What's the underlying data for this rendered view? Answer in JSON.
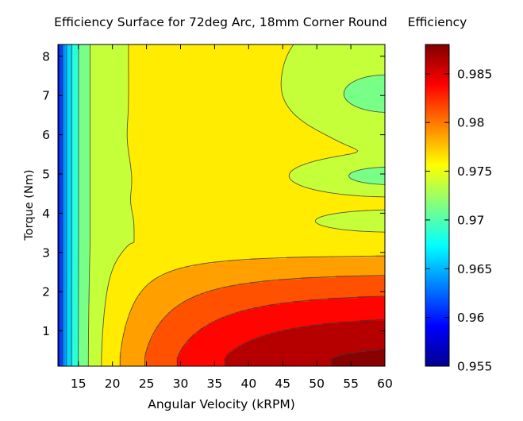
{
  "chart_data": {
    "type": "heatmap",
    "subtype": "filled-contour",
    "title": "Efficiency Surface for 72deg Arc, 18mm Corner Round",
    "xlabel": "Angular Velocity (kRPM)",
    "ylabel": "Torque (Nm)",
    "xlim": [
      12,
      60
    ],
    "ylim": [
      0.1,
      8.3
    ],
    "xticks": [
      15,
      20,
      25,
      30,
      35,
      40,
      45,
      50,
      55,
      60
    ],
    "yticks": [
      1,
      2,
      3,
      4,
      5,
      6,
      7,
      8
    ],
    "colorbar": {
      "title": "Efficiency",
      "range": [
        0.955,
        0.988
      ],
      "ticks": [
        "0.955",
        "0.96",
        "0.965",
        "0.97",
        "0.975",
        "0.98",
        "0.985"
      ],
      "colormap": [
        "#00008f",
        "#0000ff",
        "#0080ff",
        "#00ffff",
        "#80ff80",
        "#ffff00",
        "#ff8000",
        "#ff0000",
        "#800000"
      ]
    },
    "contour_levels": [
      0.9575,
      0.96,
      0.9625,
      0.965,
      0.9675,
      0.97,
      0.9725,
      0.975,
      0.9775,
      0.98,
      0.9825,
      0.985,
      0.9875
    ],
    "features": [
      {
        "label": "low-efficiency corner",
        "x": 12,
        "y": 8.2,
        "value": 0.955
      },
      {
        "label": "plateau island",
        "x": 32,
        "y": 5.9,
        "value": 0.9755
      },
      {
        "label": "plateau island",
        "x": 30,
        "y": 4.3,
        "value": 0.9755
      },
      {
        "label": "valley",
        "x": 58,
        "y": 4.95,
        "value": 0.97
      },
      {
        "label": "valley",
        "x": 58,
        "y": 3.8,
        "value": 0.9735
      },
      {
        "label": "peak",
        "x": 58,
        "y": 0.45,
        "value": 0.9875
      }
    ]
  }
}
